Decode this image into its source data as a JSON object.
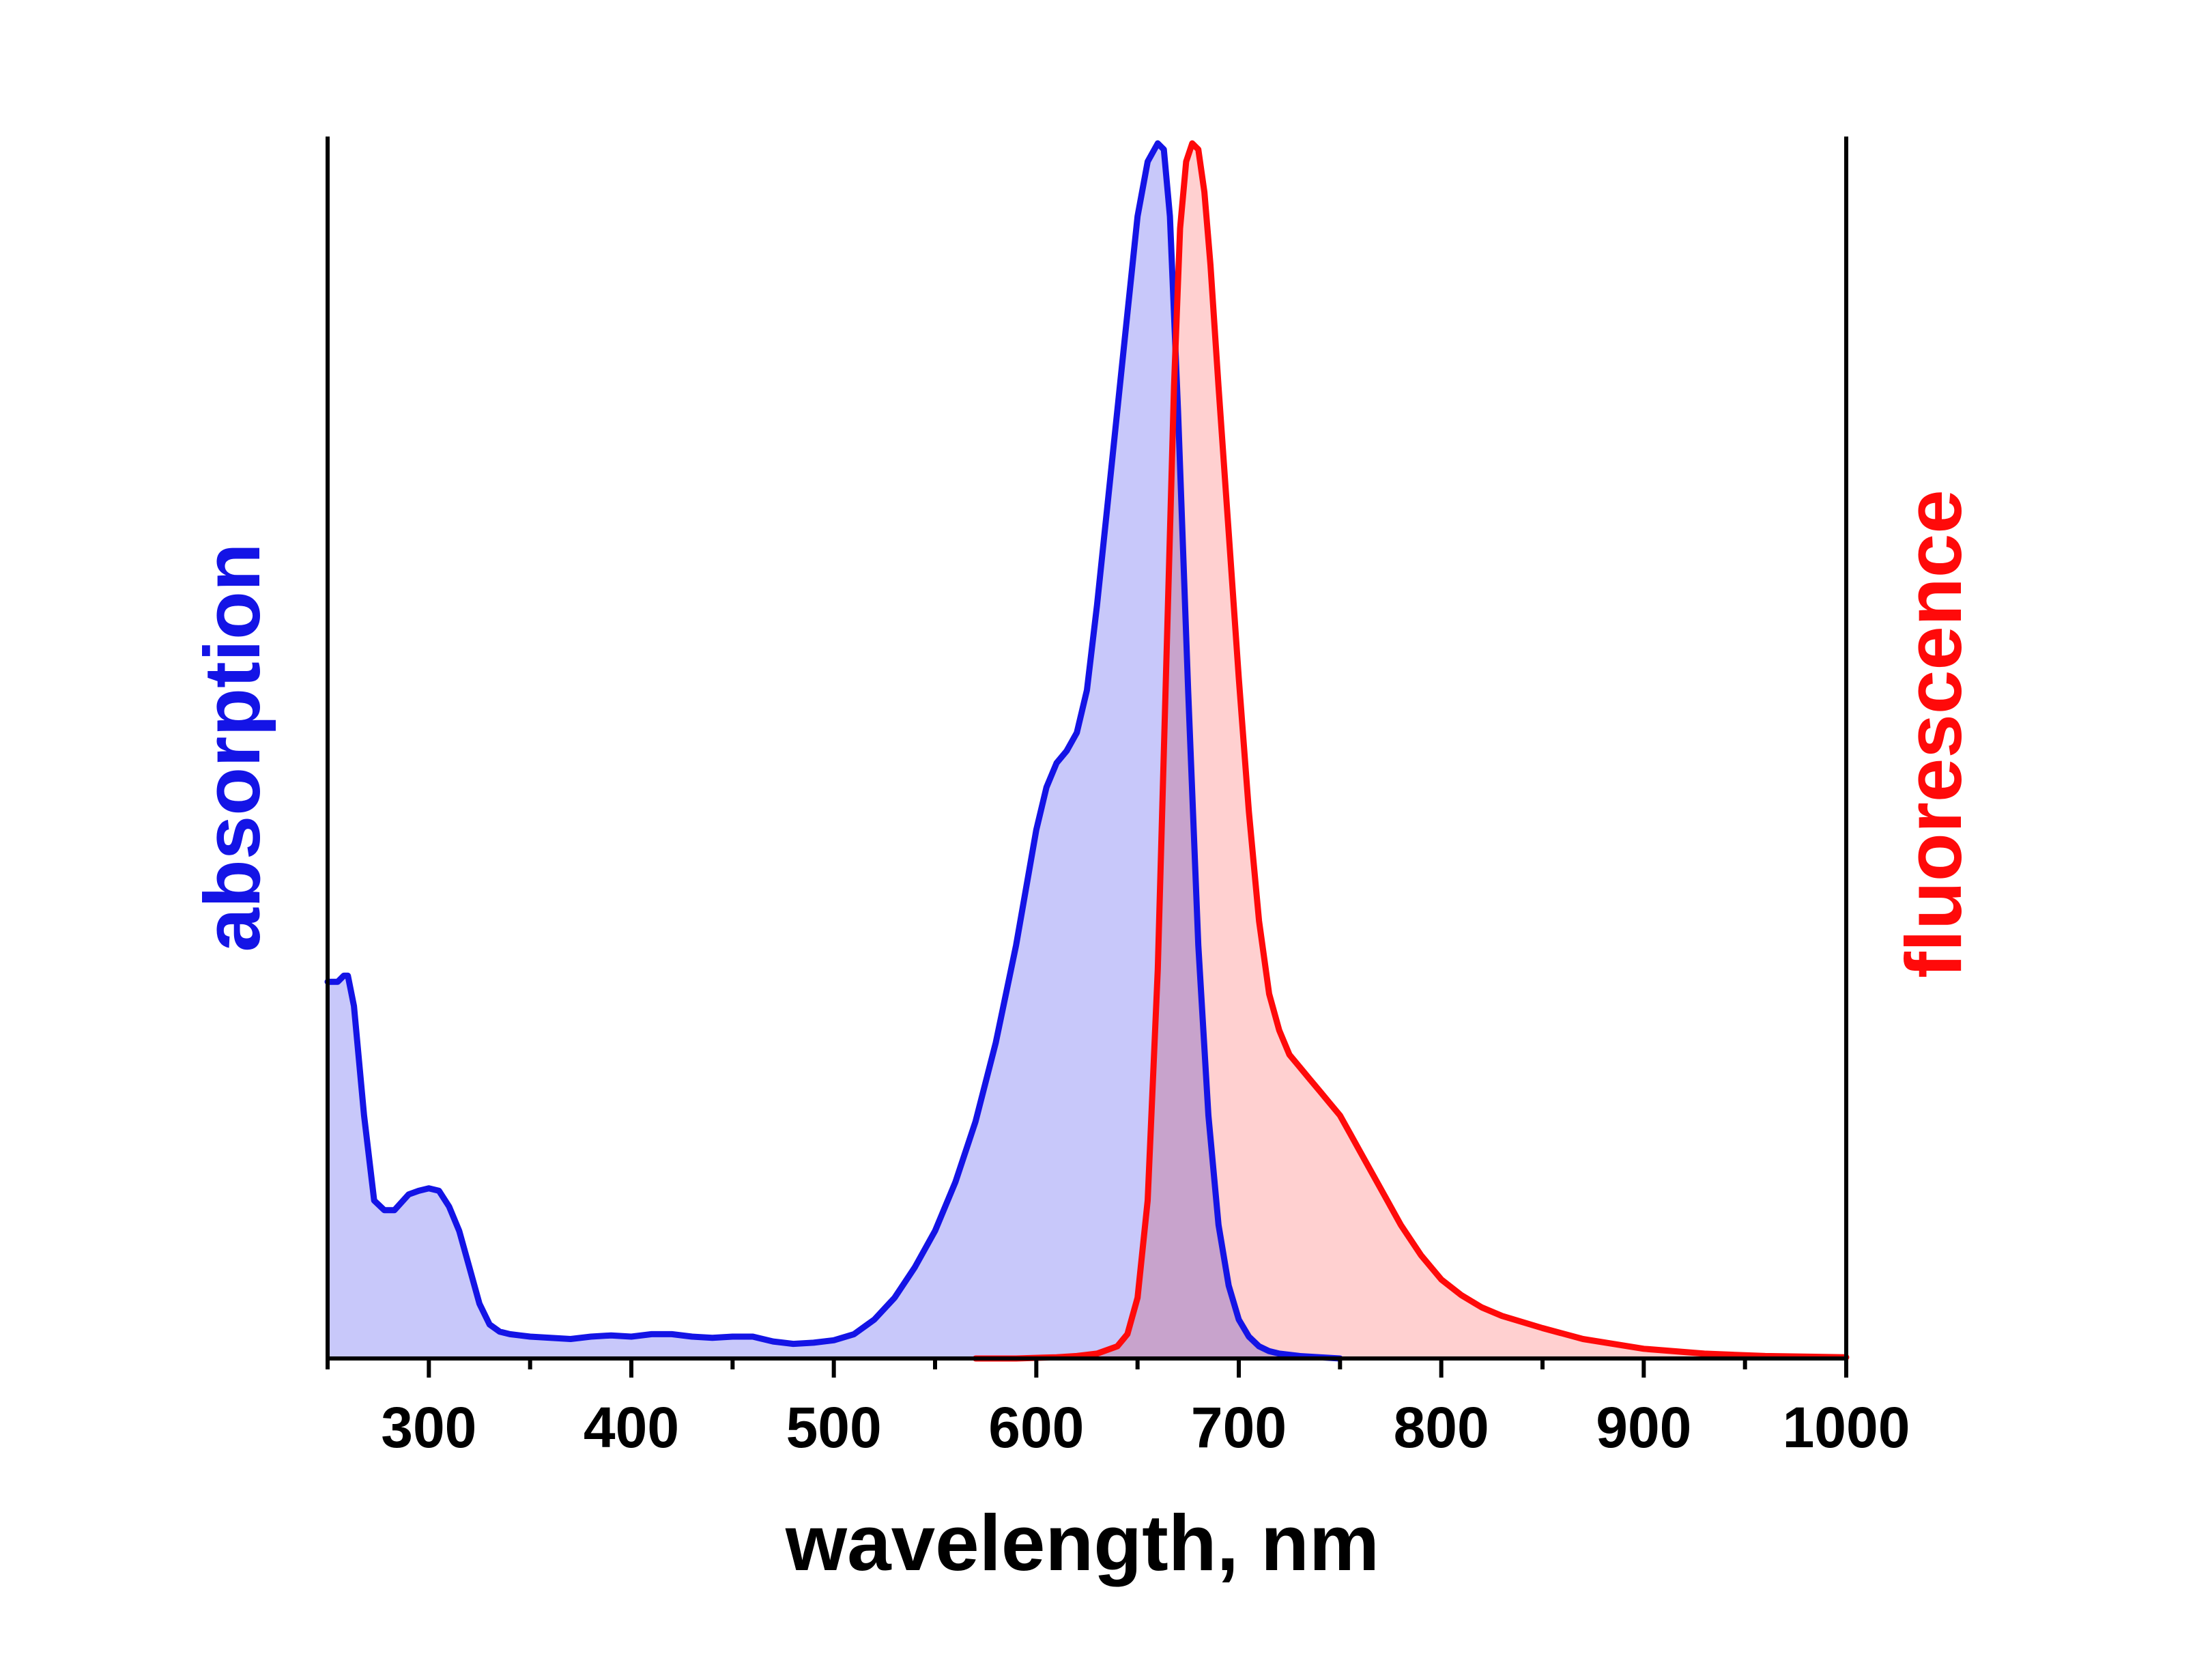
{
  "chart_data": {
    "type": "area",
    "xlabel": "wavelength, nm",
    "ylabel_left": "absorption",
    "ylabel_right": "fluorescence",
    "xlim": [
      250,
      1000
    ],
    "ylim": [
      0,
      1
    ],
    "x_ticks": [
      300,
      400,
      500,
      600,
      700,
      800,
      900,
      1000
    ],
    "x_minor_step": 50,
    "grid": false,
    "legend": "none",
    "colors": {
      "absorption_line": "#1414e6",
      "absorption_fill": "#c8c8fa",
      "fluorescence_line": "#ff0a0a",
      "fluorescence_fill": "#ffc8c8",
      "axis": "#000000",
      "absorption_label": "#1414e6",
      "fluorescence_label": "#ff0a0a"
    },
    "series": [
      {
        "name": "absorption",
        "x": [
          250,
          255,
          258,
          260,
          263,
          268,
          273,
          278,
          283,
          290,
          295,
          300,
          305,
          310,
          315,
          320,
          325,
          330,
          335,
          340,
          345,
          350,
          360,
          370,
          380,
          390,
          400,
          410,
          420,
          430,
          440,
          450,
          460,
          470,
          480,
          490,
          500,
          510,
          520,
          530,
          540,
          550,
          560,
          570,
          580,
          590,
          600,
          605,
          610,
          615,
          620,
          625,
          630,
          635,
          640,
          645,
          650,
          655,
          660,
          663,
          666,
          670,
          675,
          680,
          685,
          690,
          695,
          700,
          705,
          710,
          715,
          720,
          730,
          740,
          750
        ],
        "y": [
          0.31,
          0.31,
          0.315,
          0.315,
          0.29,
          0.2,
          0.13,
          0.122,
          0.122,
          0.135,
          0.138,
          0.14,
          0.138,
          0.125,
          0.105,
          0.075,
          0.045,
          0.028,
          0.022,
          0.02,
          0.019,
          0.018,
          0.017,
          0.016,
          0.018,
          0.019,
          0.018,
          0.02,
          0.02,
          0.018,
          0.017,
          0.018,
          0.018,
          0.014,
          0.012,
          0.013,
          0.015,
          0.02,
          0.032,
          0.05,
          0.075,
          0.105,
          0.145,
          0.195,
          0.26,
          0.34,
          0.435,
          0.47,
          0.49,
          0.5,
          0.515,
          0.55,
          0.62,
          0.7,
          0.78,
          0.86,
          0.94,
          0.985,
          1.0,
          0.995,
          0.94,
          0.78,
          0.55,
          0.34,
          0.2,
          0.11,
          0.06,
          0.032,
          0.018,
          0.01,
          0.006,
          0.004,
          0.002,
          0.001,
          0.0
        ]
      },
      {
        "name": "fluorescence",
        "x": [
          570,
          590,
          610,
          620,
          630,
          640,
          645,
          650,
          655,
          660,
          665,
          668,
          671,
          674,
          677,
          680,
          683,
          686,
          690,
          695,
          700,
          705,
          710,
          715,
          720,
          725,
          730,
          735,
          740,
          745,
          750,
          755,
          760,
          770,
          780,
          790,
          800,
          810,
          820,
          830,
          850,
          870,
          900,
          930,
          960,
          1000
        ],
        "y": [
          0.0,
          0.0,
          0.001,
          0.002,
          0.004,
          0.01,
          0.02,
          0.05,
          0.13,
          0.32,
          0.62,
          0.8,
          0.93,
          0.985,
          1.0,
          0.995,
          0.96,
          0.9,
          0.8,
          0.68,
          0.56,
          0.45,
          0.36,
          0.3,
          0.27,
          0.25,
          0.24,
          0.23,
          0.22,
          0.21,
          0.2,
          0.185,
          0.17,
          0.14,
          0.11,
          0.085,
          0.065,
          0.052,
          0.042,
          0.035,
          0.025,
          0.016,
          0.008,
          0.004,
          0.002,
          0.001
        ]
      }
    ]
  }
}
